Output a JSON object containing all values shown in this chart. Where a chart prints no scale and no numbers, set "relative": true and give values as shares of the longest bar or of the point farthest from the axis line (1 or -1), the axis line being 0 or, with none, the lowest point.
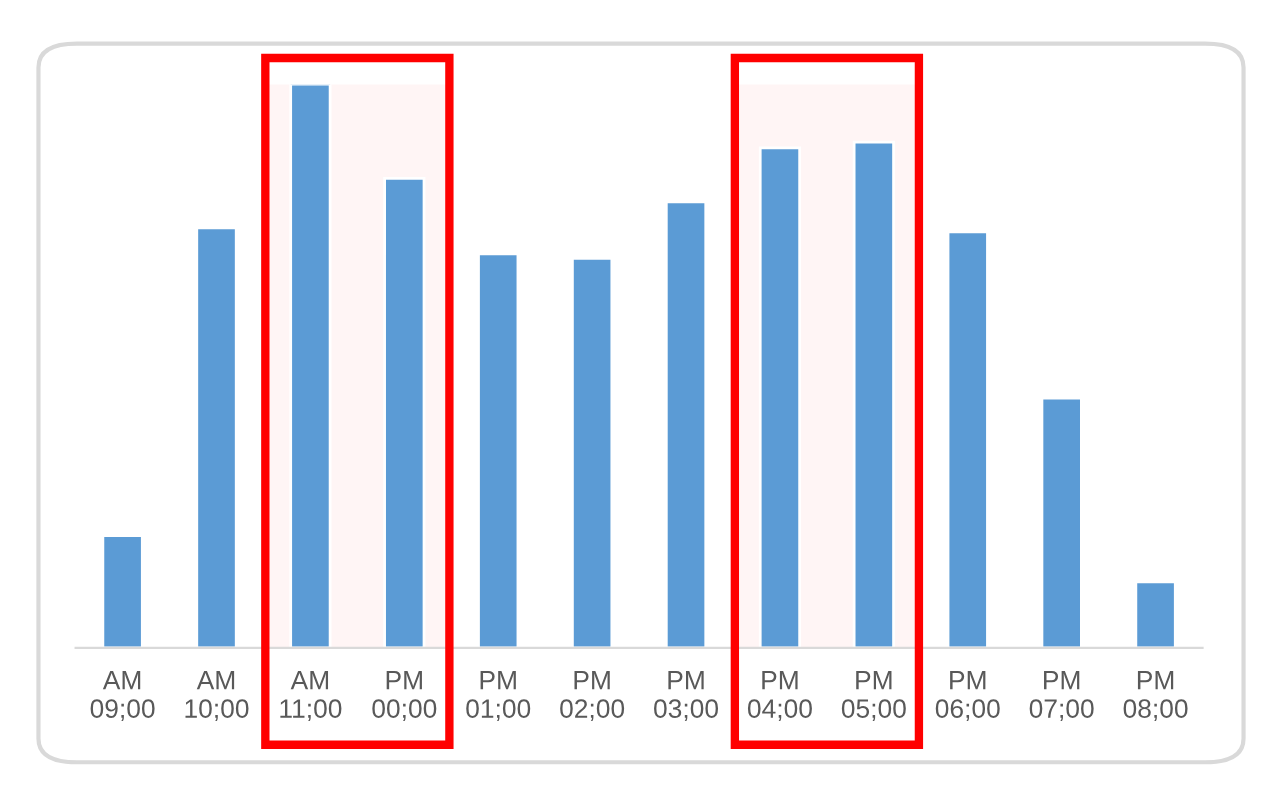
{
  "chart_data": {
    "type": "bar",
    "relative": true,
    "color": "#5b9bd5",
    "categories": [
      "AM\n09;00",
      "AM\n10;00",
      "AM\n11;00",
      "PM\n00;00",
      "PM\n01;00",
      "PM\n02;00",
      "PM\n03;00",
      "PM\n04;00",
      "PM\n05;00",
      "PM\n06;00",
      "PM\n07;00",
      "PM\n08;00"
    ],
    "values": [
      0.199,
      0.745,
      1,
      0.833,
      0.699,
      0.691,
      0.791,
      0.887,
      0.897,
      0.738,
      0.443,
      0.117
    ],
    "bands": [
      {
        "axis": "x",
        "from": "AM\n11;00",
        "to": "PM\n00;00",
        "color": "#ff0000"
      },
      {
        "axis": "x",
        "from": "PM\n04;00",
        "to": "PM\n05;00",
        "color": "#ff0000"
      }
    ],
    "grid": false,
    "legend": false
  }
}
